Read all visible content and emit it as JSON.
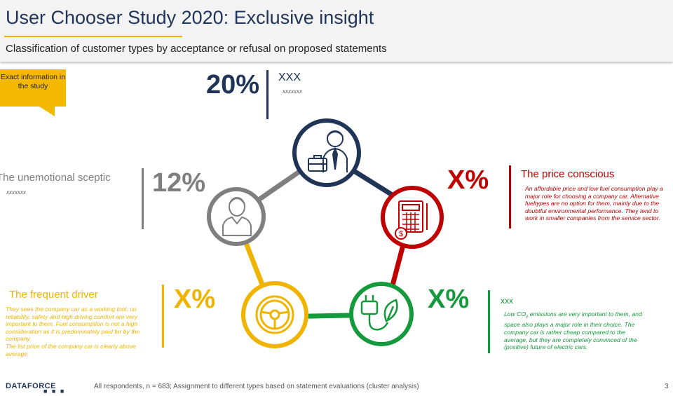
{
  "header": {
    "title": "User Chooser Study 2020: Exclusive insight",
    "subtitle": "Classification of customer types by acceptance or refusal on proposed statements"
  },
  "callout": {
    "text": "Exact information in the study"
  },
  "segments": {
    "top": {
      "percent": "20%",
      "name": "XXX",
      "placeholder": "xxxxxxx",
      "color": "#1f3456",
      "icon": "businessman-briefcase-icon"
    },
    "sceptic": {
      "percent": "12%",
      "name": "The unemotional sceptic",
      "placeholder": "xxxxxxx",
      "color": "#7f7f7f",
      "icon": "person-icon"
    },
    "price": {
      "percent": "X%",
      "name": "The price conscious",
      "color": "#c00000",
      "icon": "calculator-dollar-icon",
      "desc": "An affordable price and low fuel consumption play a major role for choosing a company car. Alternative fueltypes are no option for them, mainly due to the doubtful environmental performance.  They tend to work in smaller companies from the service sector."
    },
    "frequent": {
      "percent": "X%",
      "name": "The frequent driver",
      "color": "#f0b400",
      "icon": "steering-wheel-icon",
      "desc1": "They sees the company car as a working tool, so reliability, safety and high driving comfort are very important to them. Fuel consumption is not a high consideration as it is predominately paid for by the company.",
      "desc2": "The list price of the company car is clearly above average."
    },
    "eco": {
      "percent": "X%",
      "name": "xxx",
      "color": "#149a3c",
      "icon": "plug-leaf-icon",
      "desc_pre": "Low CO",
      "desc_sub": "2",
      "desc_post": " emissions are very important to them, and space also plays a major role in their choice. The company car is rather cheap compared to the average, but they are completely convinced of the (positive) future of electric cars."
    }
  },
  "footer": {
    "logo": "DATAFORCE",
    "note": "All respondents,  n = 683; Assignment to different  types based on statement evaluations  (cluster analysis)",
    "page": "3"
  }
}
